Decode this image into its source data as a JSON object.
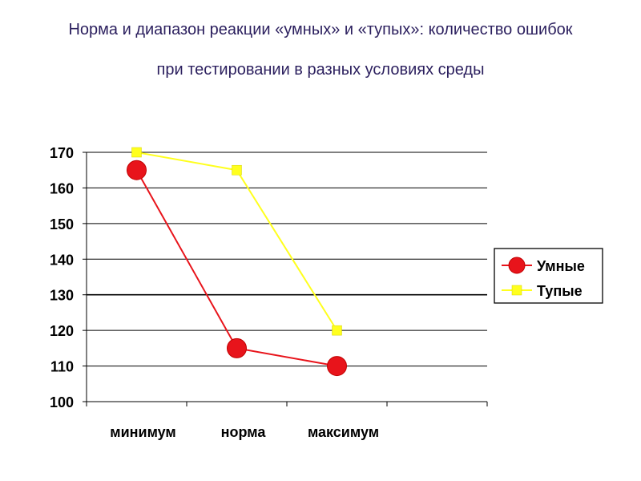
{
  "title_line1": "Норма и диапазон реакции «умных» и «тупых»: количество ошибок",
  "title_line2": "при тестировании в разных условиях среды",
  "chart_data": {
    "type": "line",
    "categories": [
      "минимум",
      "норма",
      "максимум"
    ],
    "ylim": [
      100,
      170
    ],
    "yticks": [
      100,
      110,
      120,
      130,
      140,
      150,
      160,
      170
    ],
    "grid": true,
    "legend_position": "right",
    "series": [
      {
        "name": "Умные",
        "values": [
          165,
          115,
          110
        ],
        "color": "#e8141b",
        "marker": "circle"
      },
      {
        "name": "Тупые",
        "values": [
          170,
          165,
          120
        ],
        "color": "#ffff1e",
        "marker": "square",
        "x_offset_categories": [
          0,
          1,
          2
        ]
      }
    ]
  }
}
